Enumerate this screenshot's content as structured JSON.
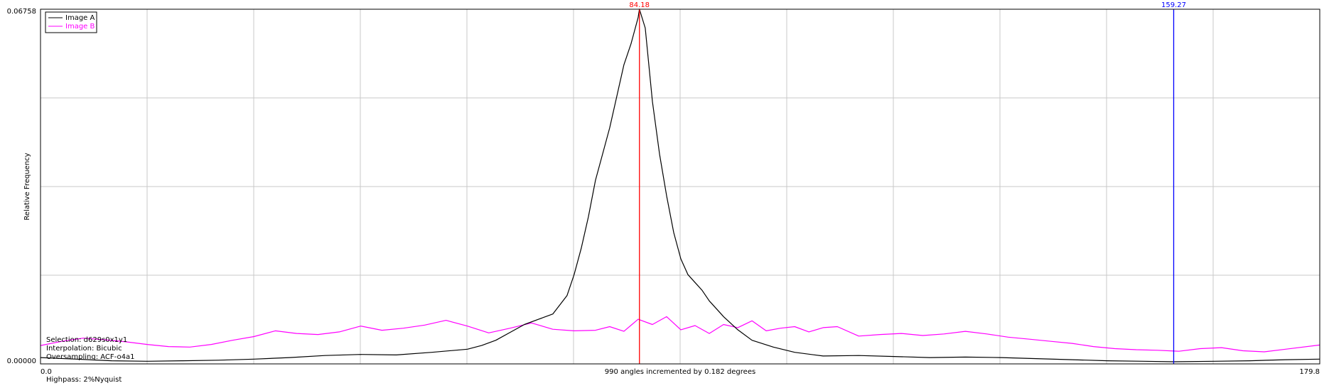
{
  "chart_data": {
    "type": "line",
    "xlabel": "990 angles incremented by 0.182 degrees",
    "ylabel": "Relative Frequency",
    "xlim": [
      0,
      179.8
    ],
    "ylim": [
      0,
      0.06758
    ],
    "x_tick_labels": [
      "0.0",
      "179.8"
    ],
    "y_tick_labels": [
      "0.06758",
      "0.00000"
    ],
    "grid": true,
    "legend_position": "top-left",
    "info_lines": [
      "Selection: d629s0x1y1",
      "Interpolation: Bicubic",
      "Oversampling: ACF-o4a1"
    ],
    "footer_note": "Highpass: 2%Nyquist",
    "markers": [
      {
        "label": "84.18",
        "x": 84.18,
        "color": "#ff0000"
      },
      {
        "label": "159.27",
        "x": 159.27,
        "color": "#0000ff"
      }
    ],
    "series": [
      {
        "name": "Image A",
        "color": "#000000",
        "x": [
          0,
          5,
          10,
          15,
          20,
          25,
          30,
          35,
          40,
          45,
          50,
          55,
          60,
          62,
          64,
          66,
          68,
          70,
          72,
          74,
          75,
          76,
          77,
          78,
          79,
          80,
          81,
          82,
          83,
          84,
          84.18,
          85,
          86,
          87,
          88,
          89,
          90,
          91,
          92,
          93,
          94,
          95,
          96,
          98,
          100,
          103,
          106,
          110,
          115,
          120,
          125,
          130,
          135,
          140,
          145,
          150,
          155,
          159.27,
          165,
          170,
          175,
          179.8
        ],
        "y": [
          0.0012,
          0.0009,
          0.0006,
          0.0005,
          0.0006,
          0.0007,
          0.0009,
          0.0012,
          0.0016,
          0.0018,
          0.0017,
          0.0022,
          0.0028,
          0.0035,
          0.0045,
          0.006,
          0.0075,
          0.0085,
          0.0095,
          0.013,
          0.017,
          0.022,
          0.028,
          0.035,
          0.04,
          0.045,
          0.051,
          0.057,
          0.061,
          0.066,
          0.0676,
          0.064,
          0.05,
          0.04,
          0.032,
          0.025,
          0.02,
          0.017,
          0.0155,
          0.014,
          0.012,
          0.0105,
          0.009,
          0.0065,
          0.0045,
          0.0032,
          0.0022,
          0.0015,
          0.0016,
          0.0014,
          0.0012,
          0.0013,
          0.0012,
          0.001,
          0.0008,
          0.0006,
          0.0005,
          0.0004,
          0.0005,
          0.0006,
          0.0008,
          0.0009
        ]
      },
      {
        "name": "Image B",
        "color": "#ff00ff",
        "x": [
          0,
          3,
          6,
          9,
          12,
          15,
          18,
          21,
          24,
          27,
          30,
          33,
          36,
          39,
          42,
          45,
          48,
          51,
          54,
          57,
          60,
          63,
          66,
          69,
          72,
          75,
          78,
          80,
          82,
          84,
          86,
          88,
          90,
          92,
          94,
          96,
          98,
          100,
          102,
          104,
          106,
          108,
          110,
          112,
          115,
          118,
          121,
          124,
          127,
          130,
          133,
          136,
          139,
          142,
          145,
          148,
          151,
          154,
          157,
          160,
          163,
          166,
          169,
          172,
          175,
          179.8
        ],
        "y": [
          0.0035,
          0.0043,
          0.0049,
          0.0046,
          0.0042,
          0.0037,
          0.0033,
          0.0032,
          0.0037,
          0.0045,
          0.0052,
          0.0063,
          0.0058,
          0.0056,
          0.0061,
          0.0072,
          0.0064,
          0.0068,
          0.0074,
          0.0083,
          0.0072,
          0.0059,
          0.0068,
          0.0078,
          0.0066,
          0.0063,
          0.0064,
          0.0071,
          0.0062,
          0.0085,
          0.0075,
          0.009,
          0.0065,
          0.0073,
          0.0058,
          0.0075,
          0.0069,
          0.0082,
          0.0063,
          0.0068,
          0.0071,
          0.0061,
          0.0069,
          0.0071,
          0.0053,
          0.0056,
          0.0058,
          0.0054,
          0.0057,
          0.0062,
          0.0057,
          0.0051,
          0.0047,
          0.0043,
          0.0039,
          0.0033,
          0.0029,
          0.0027,
          0.0026,
          0.0024,
          0.0029,
          0.0031,
          0.0025,
          0.0023,
          0.0028,
          0.0036
        ]
      }
    ]
  }
}
